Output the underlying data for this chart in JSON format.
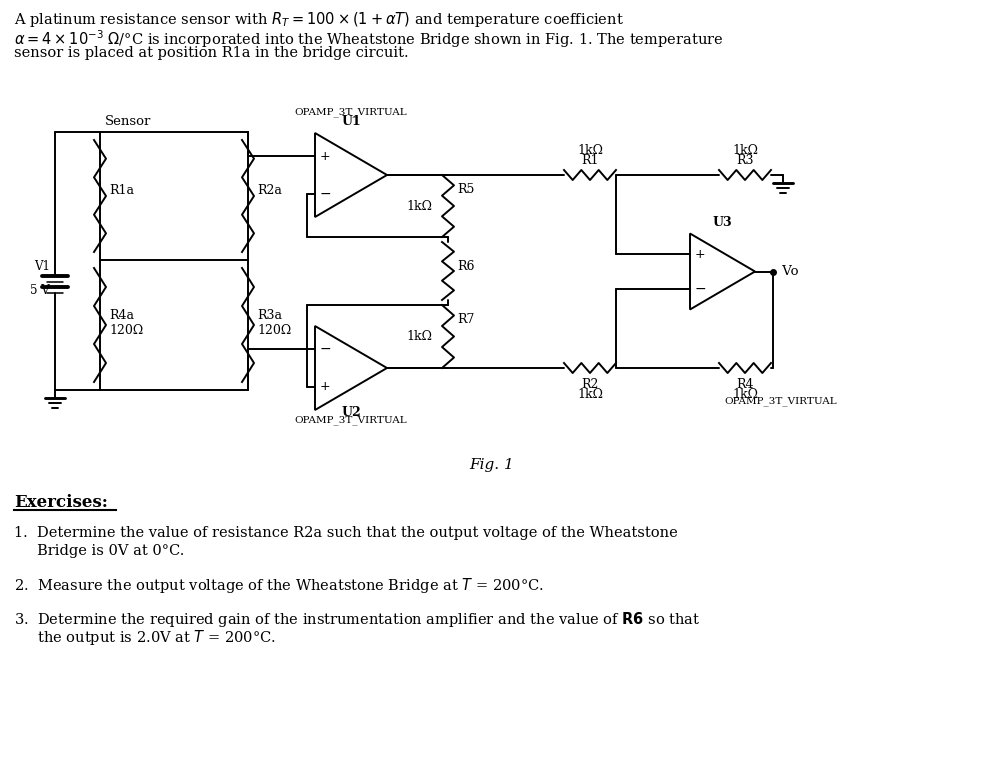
{
  "bg_color": "#ffffff",
  "lw": 1.4,
  "header1": "A platinum resistance sensor with $R_T = 100\\times(1+\\alpha T)$ and temperature coefficient",
  "header2": "$\\alpha = 4\\times10^{-3}$ $\\Omega$/°C is incorporated into the Wheatstone Bridge shown in Fig. 1. The temperature",
  "header3": "sensor is placed at position R1a in the bridge circuit.",
  "fig_label": "Fig. 1",
  "ex_title": "Exercises:",
  "ex1a": "1.  Determine the value of resistance R2a such that the output voltage of the Wheatstone",
  "ex1b": "     Bridge is 0V at 0°C.",
  "ex2": "2.  Measure the output voltage of the Wheatstone Bridge at $T$ = 200°C.",
  "ex3a": "3.  Determine the required gain of the instrumentation amplifier and the value of $\\mathbf{R6}$ so that",
  "ex3b": "     the output is 2.0V at $T$ = 200°C."
}
